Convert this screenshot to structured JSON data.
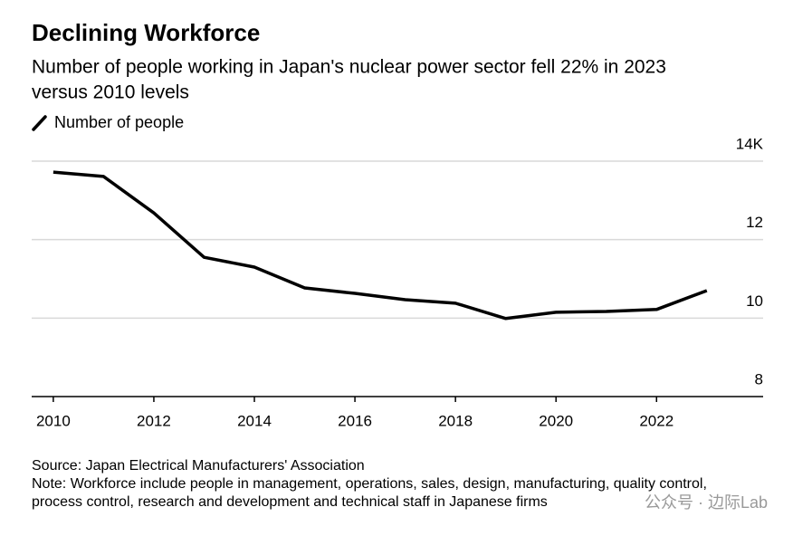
{
  "chart_data": {
    "type": "line",
    "title": "Declining Workforce",
    "subtitle": [
      "Number of people working in Japan's nuclear power sector fell 22% in 2023",
      "versus 2010 levels"
    ],
    "x": [
      2010,
      2011,
      2012,
      2013,
      2014,
      2015,
      2016,
      2017,
      2018,
      2019,
      2020,
      2021,
      2022,
      2023
    ],
    "series": [
      {
        "name": "Number of people",
        "color": "#000000",
        "values": [
          13.72,
          13.61,
          12.68,
          11.55,
          11.3,
          10.77,
          10.63,
          10.47,
          10.38,
          9.99,
          10.15,
          10.17,
          10.22,
          10.7
        ]
      }
    ],
    "xlim": [
      2009.57,
      2024.12
    ],
    "xticks": [
      2010,
      2012,
      2014,
      2016,
      2018,
      2020,
      2022
    ],
    "ylim": [
      8,
      14
    ],
    "yticks": [
      8,
      10,
      12,
      {
        "value": 14,
        "label": "14K"
      }
    ],
    "grid": true,
    "notes": [
      "Source: Japan Electrical Manufacturers' Association",
      "Note: Workforce include people in management, operations, sales, design, manufacturing, quality control,",
      "process control, research and development and technical staff in Japanese firms"
    ],
    "watermark": "公众号 · 边际Lab"
  }
}
